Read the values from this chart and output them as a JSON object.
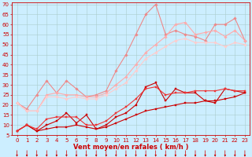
{
  "xlabel": "Vent moyen/en rafales ( km/h )",
  "background_color": "#cceeff",
  "grid_color": "#aacccc",
  "xlim": [
    -0.5,
    23.5
  ],
  "ylim": [
    5,
    71
  ],
  "yticks": [
    5,
    10,
    15,
    20,
    25,
    30,
    35,
    40,
    45,
    50,
    55,
    60,
    65,
    70
  ],
  "xticks": [
    0,
    1,
    2,
    3,
    4,
    5,
    6,
    7,
    8,
    9,
    10,
    11,
    12,
    13,
    14,
    15,
    16,
    17,
    18,
    19,
    20,
    21,
    22,
    23
  ],
  "series": [
    {
      "x": [
        0,
        1,
        2,
        3,
        4,
        5,
        6,
        7,
        8,
        9,
        10,
        11,
        12,
        13,
        14,
        15,
        16,
        17,
        18,
        19,
        20,
        21,
        22,
        23
      ],
      "y": [
        7,
        10,
        7,
        8,
        9,
        9,
        10,
        9,
        8,
        9,
        11,
        13,
        15,
        17,
        18,
        19,
        20,
        21,
        21,
        22,
        22,
        23,
        24,
        26
      ],
      "color": "#cc0000",
      "marker": "s",
      "markersize": 1.5,
      "linewidth": 0.8
    },
    {
      "x": [
        0,
        1,
        2,
        3,
        4,
        5,
        6,
        7,
        8,
        9,
        10,
        11,
        12,
        13,
        14,
        15,
        16,
        17,
        18,
        19,
        20,
        21,
        22,
        23
      ],
      "y": [
        7,
        10,
        7,
        10,
        12,
        16,
        11,
        15,
        8,
        10,
        14,
        16,
        20,
        29,
        31,
        22,
        28,
        26,
        26,
        22,
        21,
        28,
        27,
        26
      ],
      "color": "#cc0000",
      "marker": "s",
      "markersize": 1.5,
      "linewidth": 0.8
    },
    {
      "x": [
        0,
        1,
        2,
        3,
        4,
        5,
        6,
        7,
        8,
        9,
        10,
        11,
        12,
        13,
        14,
        15,
        16,
        17,
        18,
        19,
        20,
        21,
        22,
        23
      ],
      "y": [
        7,
        10,
        8,
        13,
        14,
        14,
        14,
        10,
        10,
        12,
        16,
        19,
        23,
        28,
        29,
        25,
        26,
        26,
        27,
        27,
        27,
        28,
        27,
        27
      ],
      "color": "#ee3333",
      "marker": "s",
      "markersize": 1.5,
      "linewidth": 0.8
    },
    {
      "x": [
        0,
        1,
        2,
        3,
        4,
        5,
        6,
        7,
        8,
        9,
        10,
        11,
        12,
        13,
        14,
        15,
        16,
        17,
        18,
        19,
        20,
        21,
        22,
        23
      ],
      "y": [
        21,
        18,
        25,
        32,
        26,
        32,
        28,
        24,
        25,
        27,
        37,
        45,
        55,
        65,
        70,
        55,
        57,
        55,
        54,
        52,
        60,
        60,
        63,
        52
      ],
      "color": "#ee8888",
      "marker": "D",
      "markersize": 1.8,
      "linewidth": 0.8
    },
    {
      "x": [
        0,
        1,
        2,
        3,
        4,
        5,
        6,
        7,
        8,
        9,
        10,
        11,
        12,
        13,
        14,
        15,
        16,
        17,
        18,
        19,
        20,
        21,
        22,
        23
      ],
      "y": [
        21,
        17,
        17,
        25,
        26,
        25,
        25,
        24,
        24,
        26,
        30,
        34,
        40,
        46,
        50,
        54,
        60,
        61,
        55,
        56,
        57,
        54,
        57,
        52
      ],
      "color": "#ffaaaa",
      "marker": "D",
      "markersize": 1.8,
      "linewidth": 0.8
    },
    {
      "x": [
        0,
        1,
        2,
        3,
        4,
        5,
        6,
        7,
        8,
        9,
        10,
        11,
        12,
        13,
        14,
        15,
        16,
        17,
        18,
        19,
        20,
        21,
        22,
        23
      ],
      "y": [
        21,
        17,
        17,
        24,
        24,
        23,
        24,
        23,
        23,
        25,
        28,
        31,
        37,
        43,
        46,
        49,
        52,
        53,
        51,
        51,
        51,
        49,
        51,
        50
      ],
      "color": "#ffcccc",
      "marker": "D",
      "markersize": 1.8,
      "linewidth": 0.8
    }
  ],
  "arrow_color": "#cc0000",
  "xlabel_color": "#cc0000",
  "xlabel_fontsize": 6.0,
  "tick_fontsize": 5.0,
  "tick_color": "#cc0000"
}
